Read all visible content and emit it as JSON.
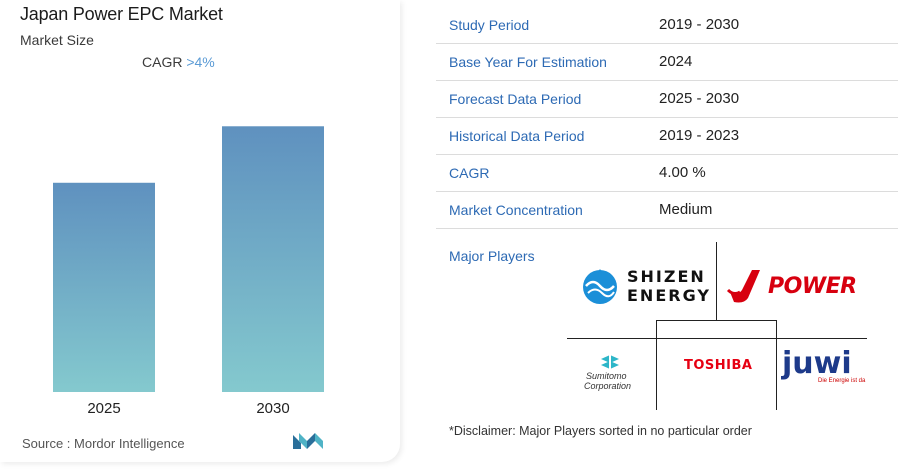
{
  "header": {
    "title": "Japan Power EPC Market",
    "subtitle": "Market Size",
    "cagr_label": "CAGR",
    "cagr_value": ">4%"
  },
  "chart_data": {
    "type": "bar",
    "categories": [
      "2025",
      "2030"
    ],
    "values": [
      1.0,
      1.27
    ],
    "title": "",
    "xlabel": "",
    "ylabel": "",
    "ylim": [
      0,
      1.3
    ],
    "grid": false,
    "colors": {
      "top": "#5f91bf",
      "bottom": "#84c9ce"
    }
  },
  "footer": {
    "source": "Source :  Mordor Intelligence"
  },
  "table": {
    "rows": [
      {
        "key": "Study Period",
        "value": "2019 - 2030"
      },
      {
        "key": "Base Year For Estimation",
        "value": "2024"
      },
      {
        "key": "Forecast Data Period",
        "value": "2025 - 2030"
      },
      {
        "key": "Historical Data Period",
        "value": "2019 - 2023"
      },
      {
        "key": "CAGR",
        "value": "4.00 %"
      },
      {
        "key": "Market Concentration",
        "value": "Medium"
      }
    ]
  },
  "players": {
    "label": "Major Players",
    "logos": {
      "shizen_line1": "SHIZEN",
      "shizen_line2": "ENERGY",
      "jpower": "POWER",
      "sumitomo_line1": "Sumitomo",
      "sumitomo_line2": "Corporation",
      "toshiba": "TOSHIBA",
      "juwi": "juwi",
      "juwi_tagline": "Die Energie ist da"
    },
    "disclaimer": "*Disclaimer: Major Players sorted in no particular order"
  },
  "colors": {
    "accent": "#2d6ab4",
    "toshiba": "#e60012",
    "jpower": "#d7000f",
    "juwi": "#1d3a8a"
  }
}
